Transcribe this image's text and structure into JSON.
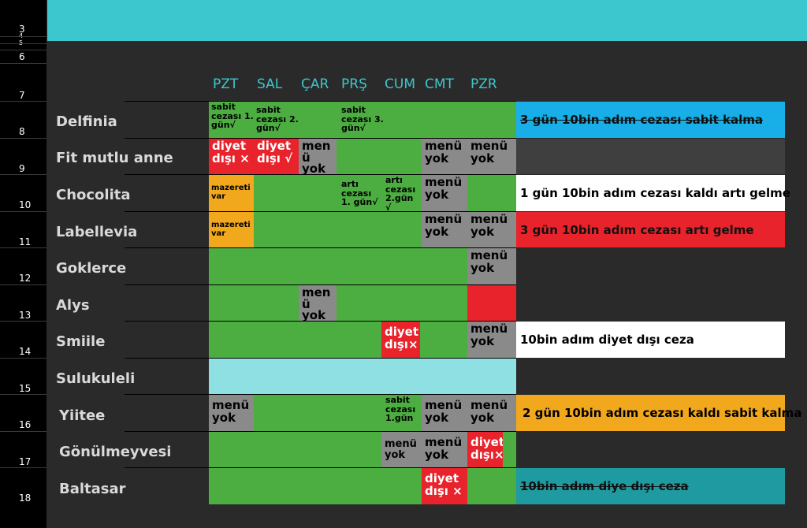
{
  "row_numbers": [
    "3",
    "4",
    "5",
    "6",
    "7",
    "8",
    "9",
    "10",
    "11",
    "12",
    "13",
    "14",
    "15",
    "16",
    "17",
    "18"
  ],
  "days": [
    "PZT",
    "SAL",
    "ÇAR",
    "PRŞ",
    "CUM",
    "CMT",
    "PZR"
  ],
  "members": [
    "Delfinia",
    "Fit mutlu anne",
    "Chocolita",
    "Labellevia",
    "Goklerce",
    "Alys",
    "Smiile",
    "Sulukuleli",
    "Yiitee",
    "Gönülmeyvesi",
    "Baltasar"
  ],
  "cells": {
    "delfinia_pzt": "sabit cezası 1. gün√",
    "delfinia_sal": "sabit cezası 2. gün√",
    "delfinia_prs": "sabit cezası 3. gün√",
    "fit_pzt": "diyet dışı ×",
    "fit_sal": "diyet dışı √",
    "fit_car": "men ü yok",
    "fit_cmt": "menü yok",
    "fit_pzr": "menü yok",
    "choco_pzt": "mazereti var",
    "choco_prs": "artı cezası 1. gün√",
    "choco_cum": "artı cezası 2.gün √",
    "choco_cmt": "menü yok",
    "label_pzt": "mazereti var",
    "label_cmt": "menü yok",
    "label_pzr": "menü yok",
    "gok_pzr": "menü yok",
    "alys_car": "men ü yok",
    "smiile_cum": "diyet dışı×",
    "smiile_pzr": "menü yok",
    "yiitee_pzt": "menü yok",
    "yiitee_cum": "sabit cezası 1.gün",
    "yiitee_cmt": "menü yok",
    "yiitee_pzr": "menü yok",
    "gonul_cum": "menü yok",
    "gonul_cmt": "menü yok",
    "gonul_pzr": "diyet dışı×",
    "balt_cmt": "diyet dışı ×"
  },
  "notes": {
    "delfinia": "3 gün 10bin adım cezası sabit kalma",
    "chocolita": "1 gün 10bin adım cezası kaldı artı gelme",
    "labellevia": "3 gün 10bin adım cezası artı gelme",
    "smiile": "10bin adım diyet dışı ceza",
    "yiitee": "2 gün 10bin adım cezası kaldı sabit kalma",
    "baltasar": "10bin adım diye dışı ceza"
  },
  "colors": {
    "top_bar": "#3cc6cd",
    "green": "#4cad41",
    "grey": "#8a8a8a",
    "red": "#e8232b",
    "orange": "#f2a81d",
    "cyan": "#8ee0e2",
    "note_blue": "#18aee8",
    "note_teal": "#1f9aa0"
  }
}
